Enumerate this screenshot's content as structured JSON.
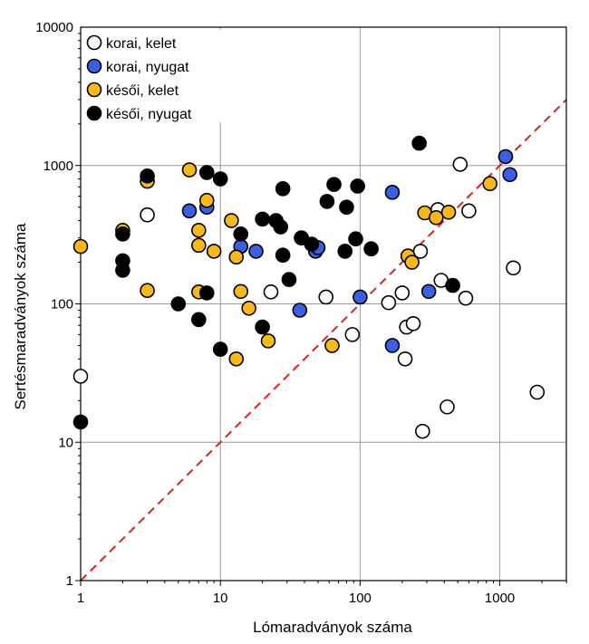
{
  "chart_data": {
    "type": "scatter",
    "xlabel": "Lómaradványok száma",
    "ylabel": "Sertésmaradványok száma",
    "x_scale": "log",
    "y_scale": "log",
    "xlim": [
      1,
      3000
    ],
    "ylim": [
      1,
      10000
    ],
    "x_ticks": [
      "1",
      "10",
      "100",
      "1000"
    ],
    "y_ticks": [
      "1",
      "10",
      "100",
      "1000",
      "10000"
    ],
    "grid": true,
    "legend_position": "top-left",
    "reference_line": {
      "type": "y = x",
      "color": "#e0201b",
      "style": "dashed"
    },
    "series": [
      {
        "name": "korai, kelet",
        "fill": "#ffffff",
        "points": [
          [
            1,
            30
          ],
          [
            3,
            440
          ],
          [
            23,
            122
          ],
          [
            57,
            112
          ],
          [
            88,
            60
          ],
          [
            160,
            102
          ],
          [
            200,
            120
          ],
          [
            215,
            68
          ],
          [
            240,
            72
          ],
          [
            270,
            240
          ],
          [
            210,
            40
          ],
          [
            280,
            12
          ],
          [
            380,
            148
          ],
          [
            360,
            480
          ],
          [
            420,
            18
          ],
          [
            520,
            1020
          ],
          [
            600,
            470
          ],
          [
            570,
            110
          ],
          [
            1250,
            182
          ],
          [
            1850,
            23
          ]
        ]
      },
      {
        "name": "korai, nyugat",
        "fill": "#3a5fe0",
        "points": [
          [
            6,
            470
          ],
          [
            8,
            500
          ],
          [
            14,
            260
          ],
          [
            18,
            240
          ],
          [
            37,
            90
          ],
          [
            38,
            300
          ],
          [
            48,
            240
          ],
          [
            50,
            255
          ],
          [
            100,
            112
          ],
          [
            170,
            640
          ],
          [
            170,
            50
          ],
          [
            310,
            123
          ],
          [
            1100,
            1160
          ],
          [
            1180,
            860
          ]
        ]
      },
      {
        "name": "késői, kelet",
        "fill": "#f7b915",
        "points": [
          [
            1,
            260
          ],
          [
            2,
            340
          ],
          [
            3,
            770
          ],
          [
            3,
            125
          ],
          [
            6,
            930
          ],
          [
            7,
            340
          ],
          [
            7,
            265
          ],
          [
            7,
            122
          ],
          [
            8,
            560
          ],
          [
            9,
            240
          ],
          [
            12,
            400
          ],
          [
            13,
            218
          ],
          [
            13,
            40
          ],
          [
            14,
            123
          ],
          [
            16,
            93
          ],
          [
            22,
            54
          ],
          [
            63,
            50
          ],
          [
            220,
            222
          ],
          [
            235,
            200
          ],
          [
            290,
            455
          ],
          [
            350,
            420
          ],
          [
            430,
            460
          ],
          [
            850,
            740
          ]
        ]
      },
      {
        "name": "késői, nyugat",
        "fill": "#000000",
        "points": [
          [
            1,
            14
          ],
          [
            2,
            320
          ],
          [
            2,
            205
          ],
          [
            2,
            175
          ],
          [
            3,
            840
          ],
          [
            5,
            100
          ],
          [
            7,
            77
          ],
          [
            8,
            890
          ],
          [
            8,
            120
          ],
          [
            10,
            800
          ],
          [
            10,
            47
          ],
          [
            14,
            320
          ],
          [
            20,
            68
          ],
          [
            20,
            410
          ],
          [
            25,
            400
          ],
          [
            27,
            360
          ],
          [
            28,
            225
          ],
          [
            28,
            680
          ],
          [
            31,
            150
          ],
          [
            38,
            300
          ],
          [
            45,
            270
          ],
          [
            58,
            550
          ],
          [
            65,
            730
          ],
          [
            78,
            240
          ],
          [
            80,
            500
          ],
          [
            93,
            295
          ],
          [
            96,
            710
          ],
          [
            120,
            250
          ],
          [
            265,
            1450
          ],
          [
            460,
            136
          ]
        ]
      }
    ]
  }
}
